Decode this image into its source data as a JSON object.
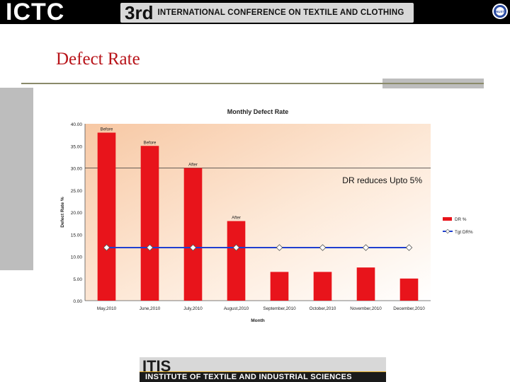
{
  "header": {
    "logo_text": "ICTC",
    "edition": "3rd",
    "conference_name": "INTERNATIONAL CONFERENCE ON TEXTILE AND CLOTHING",
    "seal_text": "NUST"
  },
  "slide": {
    "title": "Defect Rate"
  },
  "footer": {
    "logo_short": "ITIS",
    "logo_full": "INSTITUTE OF TEXTILE AND INDUSTRIAL SCIENCES"
  },
  "colors": {
    "bar": "#e8141b",
    "target_line": "#1f3fd0",
    "title_red": "#b8141a"
  },
  "chart_data": {
    "type": "bar",
    "title": "Monthly Defect Rate",
    "xlabel": "Month",
    "ylabel": "Defect Rate %",
    "ylim": [
      0,
      40
    ],
    "y_ticks": [
      "0.00",
      "5.00",
      "10.00",
      "15.00",
      "20.00",
      "25.00",
      "30.00",
      "35.00",
      "40.00"
    ],
    "categories": [
      "May,2010",
      "June,2010",
      "July,2010",
      "August,2010",
      "September,2010",
      "October,2010",
      "November,2010",
      "December,2010"
    ],
    "series": [
      {
        "name": "DR %",
        "type": "bar",
        "values": [
          38,
          35,
          30,
          18,
          6.5,
          6.5,
          7.5,
          5
        ]
      },
      {
        "name": "Tgt  DR%",
        "type": "line",
        "values": [
          12,
          12,
          12,
          12,
          12,
          12,
          12,
          12
        ]
      }
    ],
    "bar_labels": [
      "Before",
      "Before",
      "After",
      "After",
      "",
      "",
      "",
      ""
    ],
    "reference_line": 30,
    "annotation": "DR reduces Upto 5%",
    "legend_position": "right",
    "grid": false
  }
}
